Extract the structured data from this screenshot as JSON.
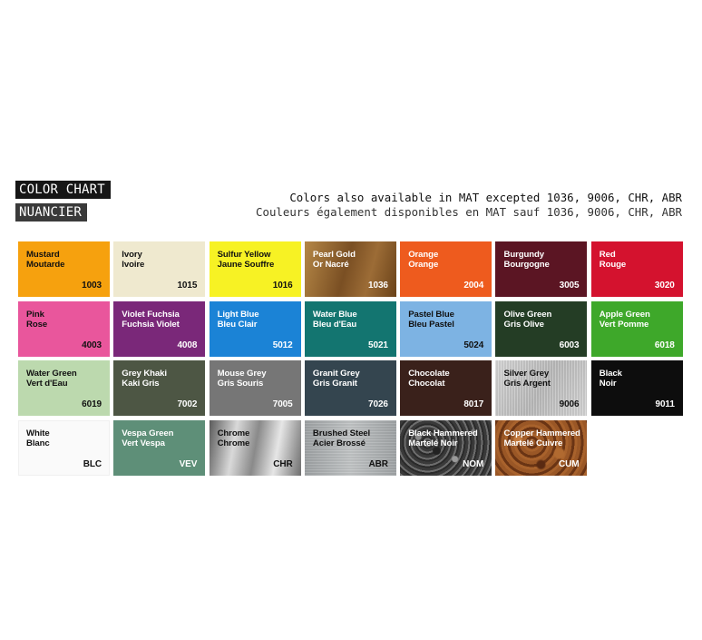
{
  "header": {
    "title_en": "COLOR CHART",
    "title_fr": "NUANCIER",
    "note_en": "Colors also available in MAT excepted 1036, 9006, CHR, ABR",
    "note_fr": "Couleurs également disponibles en MAT sauf 1036, 9006, CHR, ABR"
  },
  "swatches": [
    {
      "name_en": "Mustard",
      "name_fr": "Moutarde",
      "code": "1003",
      "color": "#F6A10E",
      "text": "dark"
    },
    {
      "name_en": "Ivory",
      "name_fr": "Ivoire",
      "code": "1015",
      "color": "#EFE9CF",
      "text": "dark"
    },
    {
      "name_en": "Sulfur Yellow",
      "name_fr": "Jaune Souffre",
      "code": "1016",
      "color": "#F7F224",
      "text": "dark"
    },
    {
      "name_en": "Pearl Gold",
      "name_fr": "Or Nacré",
      "code": "1036",
      "color": "#8A5E2E",
      "text": "light"
    },
    {
      "name_en": "Orange",
      "name_fr": "Orange",
      "code": "2004",
      "color": "#EE5B1E",
      "text": "light"
    },
    {
      "name_en": "Burgundy",
      "name_fr": "Bourgogne",
      "code": "3005",
      "color": "#5B1523",
      "text": "light"
    },
    {
      "name_en": "Red",
      "name_fr": "Rouge",
      "code": "3020",
      "color": "#D4122E",
      "text": "light"
    },
    {
      "name_en": "Pink",
      "name_fr": "Rose",
      "code": "4003",
      "color": "#E9569C",
      "text": "dark"
    },
    {
      "name_en": "Violet Fuchsia",
      "name_fr": "Fuchsia Violet",
      "code": "4008",
      "color": "#7A2879",
      "text": "light"
    },
    {
      "name_en": "Light Blue",
      "name_fr": "Bleu Clair",
      "code": "5012",
      "color": "#1B83D6",
      "text": "light"
    },
    {
      "name_en": "Water Blue",
      "name_fr": "Bleu d'Eau",
      "code": "5021",
      "color": "#137570",
      "text": "light"
    },
    {
      "name_en": "Pastel Blue",
      "name_fr": "Bleu Pastel",
      "code": "5024",
      "color": "#7DB3E3",
      "text": "dark"
    },
    {
      "name_en": "Olive Green",
      "name_fr": "Gris Olive",
      "code": "6003",
      "color": "#243D25",
      "text": "light"
    },
    {
      "name_en": "Apple Green",
      "name_fr": "Vert Pomme",
      "code": "6018",
      "color": "#3EA82A",
      "text": "light"
    },
    {
      "name_en": "Water Green",
      "name_fr": "Vert d'Eau",
      "code": "6019",
      "color": "#BCD9AE",
      "text": "dark"
    },
    {
      "name_en": "Grey Khaki",
      "name_fr": "Kaki Gris",
      "code": "7002",
      "color": "#4D5644",
      "text": "light"
    },
    {
      "name_en": "Mouse Grey",
      "name_fr": "Gris Souris",
      "code": "7005",
      "color": "#767676",
      "text": "light"
    },
    {
      "name_en": "Granit Grey",
      "name_fr": "Gris Granit",
      "code": "7026",
      "color": "#34454F",
      "text": "light"
    },
    {
      "name_en": "Chocolate",
      "name_fr": "Chocolat",
      "code": "8017",
      "color": "#3A211B",
      "text": "light"
    },
    {
      "name_en": "Silver Grey",
      "name_fr": "Gris Argent",
      "code": "9006",
      "color": "#C8C8C8",
      "text": "dark"
    },
    {
      "name_en": "Black",
      "name_fr": "Noir",
      "code": "9011",
      "color": "#0D0D0D",
      "text": "light"
    },
    {
      "name_en": "White",
      "name_fr": "Blanc",
      "code": "BLC",
      "color": "#FAFAFA",
      "text": "dark"
    },
    {
      "name_en": "Vespa Green",
      "name_fr": "Vert Vespa",
      "code": "VEV",
      "color": "#5E8F78",
      "text": "light"
    },
    {
      "name_en": "Chrome",
      "name_fr": "Chrome",
      "code": "CHR",
      "color": "#9A9A9A",
      "text": "dark"
    },
    {
      "name_en": "Brushed Steel",
      "name_fr": "Acier Brossé",
      "code": "ABR",
      "color": "#A9ACAD",
      "text": "dark"
    },
    {
      "name_en": "Black Hammered",
      "name_fr": "Martelé Noir",
      "code": "NOM",
      "color": "#555555",
      "text": "light"
    },
    {
      "name_en": "Copper Hammered",
      "name_fr": "Martelé Cuivre",
      "code": "CUM",
      "color": "#8E4E25",
      "text": "light"
    }
  ]
}
